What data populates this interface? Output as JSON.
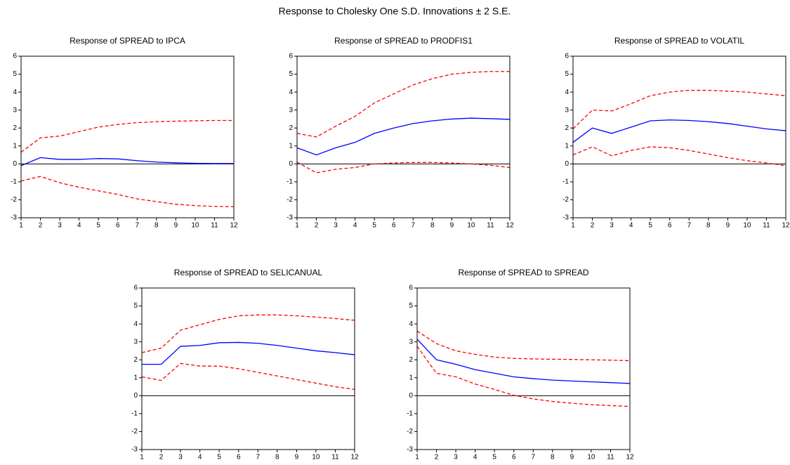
{
  "title": "Response to Cholesky One S.D. Innovations ± 2 S.E.",
  "chart_data": [
    {
      "type": "line",
      "title": "Response of SPREAD to IPCA",
      "x": [
        1,
        2,
        3,
        4,
        5,
        6,
        7,
        8,
        9,
        10,
        11,
        12
      ],
      "xlim": [
        1,
        12
      ],
      "xticks": [
        1,
        2,
        3,
        4,
        5,
        6,
        7,
        8,
        9,
        10,
        11,
        12
      ],
      "ylim": [
        -3,
        6
      ],
      "yticks": [
        -3,
        -2,
        -1,
        0,
        1,
        2,
        3,
        4,
        5,
        6
      ],
      "series": [
        {
          "color": "#0000ff",
          "dash": false,
          "values": [
            -0.1,
            0.35,
            0.25,
            0.25,
            0.3,
            0.28,
            0.18,
            0.1,
            0.06,
            0.03,
            0.02,
            0.02
          ]
        },
        {
          "color": "#ff0000",
          "dash": true,
          "values": [
            0.65,
            1.45,
            1.55,
            1.8,
            2.05,
            2.2,
            2.3,
            2.35,
            2.38,
            2.4,
            2.42,
            2.42
          ]
        },
        {
          "color": "#ff0000",
          "dash": true,
          "values": [
            -0.95,
            -0.7,
            -1.05,
            -1.3,
            -1.5,
            -1.7,
            -1.95,
            -2.1,
            -2.25,
            -2.32,
            -2.37,
            -2.38
          ]
        }
      ]
    },
    {
      "type": "line",
      "title": "Response of SPREAD to PRODFIS1",
      "x": [
        1,
        2,
        3,
        4,
        5,
        6,
        7,
        8,
        9,
        10,
        11,
        12
      ],
      "xlim": [
        1,
        12
      ],
      "xticks": [
        1,
        2,
        3,
        4,
        5,
        6,
        7,
        8,
        9,
        10,
        11,
        12
      ],
      "ylim": [
        -3,
        6
      ],
      "yticks": [
        -3,
        -2,
        -1,
        0,
        1,
        2,
        3,
        4,
        5,
        6
      ],
      "series": [
        {
          "color": "#0000ff",
          "dash": false,
          "values": [
            0.9,
            0.5,
            0.9,
            1.2,
            1.7,
            2.0,
            2.25,
            2.4,
            2.5,
            2.55,
            2.52,
            2.48
          ]
        },
        {
          "color": "#ff0000",
          "dash": true,
          "values": [
            1.7,
            1.5,
            2.1,
            2.65,
            3.4,
            3.9,
            4.4,
            4.75,
            5.0,
            5.1,
            5.15,
            5.15
          ]
        },
        {
          "color": "#ff0000",
          "dash": true,
          "values": [
            0.1,
            -0.5,
            -0.3,
            -0.2,
            0.0,
            0.05,
            0.08,
            0.08,
            0.05,
            0.0,
            -0.08,
            -0.2
          ]
        }
      ]
    },
    {
      "type": "line",
      "title": "Response of SPREAD to VOLATIL",
      "x": [
        1,
        2,
        3,
        4,
        5,
        6,
        7,
        8,
        9,
        10,
        11,
        12
      ],
      "xlim": [
        1,
        12
      ],
      "xticks": [
        1,
        2,
        3,
        4,
        5,
        6,
        7,
        8,
        9,
        10,
        11,
        12
      ],
      "ylim": [
        -3,
        6
      ],
      "yticks": [
        -3,
        -2,
        -1,
        0,
        1,
        2,
        3,
        4,
        5,
        6
      ],
      "series": [
        {
          "color": "#0000ff",
          "dash": false,
          "values": [
            1.2,
            2.0,
            1.7,
            2.05,
            2.4,
            2.45,
            2.42,
            2.35,
            2.25,
            2.1,
            1.95,
            1.85
          ]
        },
        {
          "color": "#ff0000",
          "dash": true,
          "values": [
            1.95,
            3.0,
            2.95,
            3.35,
            3.8,
            4.0,
            4.1,
            4.1,
            4.05,
            4.0,
            3.9,
            3.8
          ]
        },
        {
          "color": "#ff0000",
          "dash": true,
          "values": [
            0.5,
            0.95,
            0.45,
            0.75,
            0.95,
            0.9,
            0.75,
            0.55,
            0.35,
            0.18,
            0.05,
            -0.1
          ]
        }
      ]
    },
    {
      "type": "line",
      "title": "Response of SPREAD to SELICANUAL",
      "x": [
        1,
        2,
        3,
        4,
        5,
        6,
        7,
        8,
        9,
        10,
        11,
        12
      ],
      "xlim": [
        1,
        12
      ],
      "xticks": [
        1,
        2,
        3,
        4,
        5,
        6,
        7,
        8,
        9,
        10,
        11,
        12
      ],
      "ylim": [
        -3,
        6
      ],
      "yticks": [
        -3,
        -2,
        -1,
        0,
        1,
        2,
        3,
        4,
        5,
        6
      ],
      "series": [
        {
          "color": "#0000ff",
          "dash": false,
          "values": [
            1.75,
            1.75,
            2.75,
            2.8,
            2.95,
            2.97,
            2.92,
            2.8,
            2.65,
            2.5,
            2.4,
            2.28
          ]
        },
        {
          "color": "#ff0000",
          "dash": true,
          "values": [
            2.4,
            2.65,
            3.65,
            3.95,
            4.25,
            4.45,
            4.5,
            4.5,
            4.45,
            4.38,
            4.3,
            4.2
          ]
        },
        {
          "color": "#ff0000",
          "dash": true,
          "values": [
            1.05,
            0.85,
            1.8,
            1.65,
            1.65,
            1.5,
            1.3,
            1.1,
            0.9,
            0.7,
            0.5,
            0.35
          ]
        }
      ]
    },
    {
      "type": "line",
      "title": "Response of SPREAD to SPREAD",
      "x": [
        1,
        2,
        3,
        4,
        5,
        6,
        7,
        8,
        9,
        10,
        11,
        12
      ],
      "xlim": [
        1,
        12
      ],
      "xticks": [
        1,
        2,
        3,
        4,
        5,
        6,
        7,
        8,
        9,
        10,
        11,
        12
      ],
      "ylim": [
        -3,
        6
      ],
      "yticks": [
        -3,
        -2,
        -1,
        0,
        1,
        2,
        3,
        4,
        5,
        6
      ],
      "series": [
        {
          "color": "#0000ff",
          "dash": false,
          "values": [
            3.15,
            2.0,
            1.75,
            1.45,
            1.25,
            1.05,
            0.95,
            0.87,
            0.82,
            0.77,
            0.73,
            0.68
          ]
        },
        {
          "color": "#ff0000",
          "dash": true,
          "values": [
            3.6,
            2.9,
            2.5,
            2.3,
            2.15,
            2.08,
            2.05,
            2.03,
            2.02,
            2.0,
            1.98,
            1.95
          ]
        },
        {
          "color": "#ff0000",
          "dash": true,
          "values": [
            2.75,
            1.25,
            1.05,
            0.65,
            0.35,
            0.02,
            -0.18,
            -0.32,
            -0.42,
            -0.5,
            -0.55,
            -0.6
          ]
        }
      ]
    }
  ]
}
